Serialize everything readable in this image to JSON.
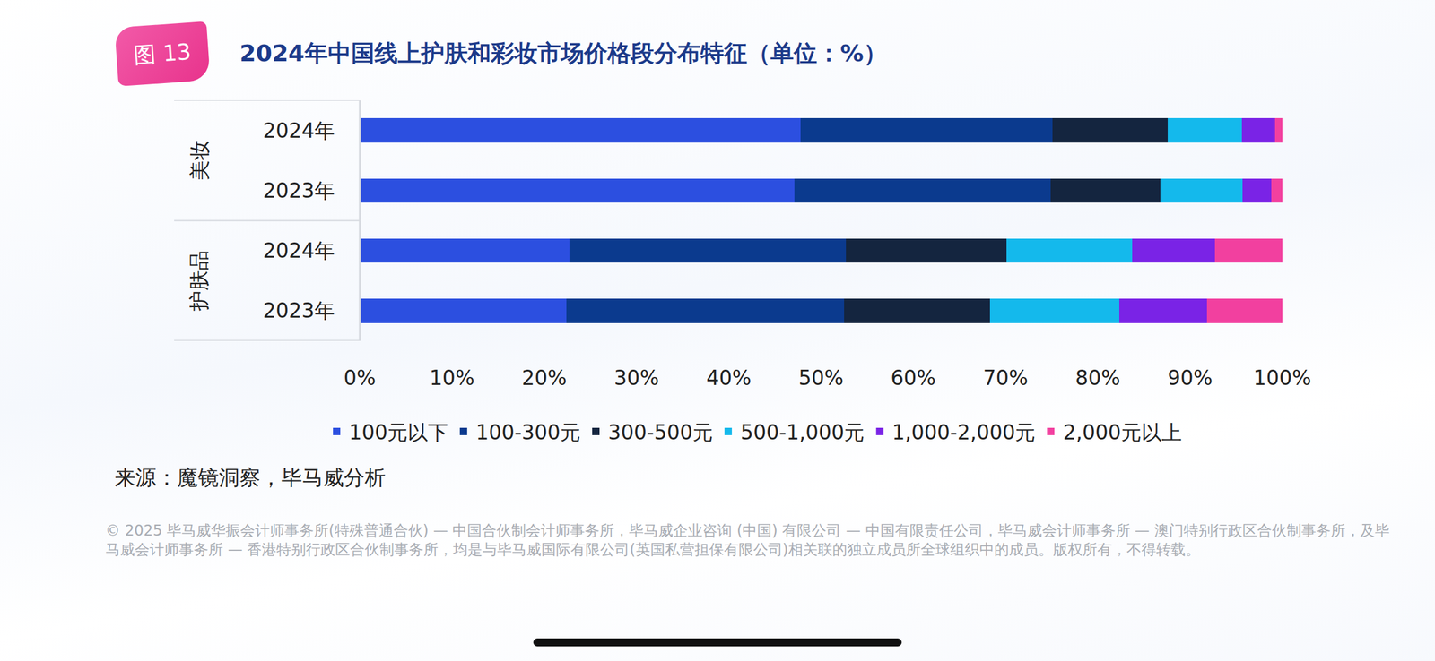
{
  "badge": "图 13",
  "chart_data": {
    "type": "bar",
    "title": "2024年中国线上护肤和彩妆市场价格段分布特征（单位：%）",
    "orientation": "horizontal",
    "stacked": true,
    "categories": [
      "2024年",
      "2023年",
      "2024年",
      "2023年"
    ],
    "groups": [
      "美妆",
      "美妆",
      "护肤品",
      "护肤品"
    ],
    "series": [
      {
        "name": "100元以下",
        "color": "#2c4fe0",
        "values": [
          47.8,
          47.1,
          22.7,
          22.4
        ]
      },
      {
        "name": "100-300元",
        "color": "#0b3a8e",
        "values": [
          27.3,
          27.8,
          30.0,
          30.1
        ]
      },
      {
        "name": "300-500元",
        "color": "#14253f",
        "values": [
          12.5,
          11.9,
          17.4,
          15.8
        ]
      },
      {
        "name": "500-1,000元",
        "color": "#14b9ec",
        "values": [
          8.0,
          8.9,
          13.6,
          14.0
        ]
      },
      {
        "name": "1,000-2,000元",
        "color": "#7a23e6",
        "values": [
          3.6,
          3.1,
          9.0,
          9.5
        ]
      },
      {
        "name": "2,000元以上",
        "color": "#f2409f",
        "values": [
          0.8,
          1.2,
          7.3,
          8.2
        ]
      }
    ],
    "xlim": [
      0,
      100
    ],
    "xticks": [
      {
        "value": 0,
        "label": "0%"
      },
      {
        "value": 10,
        "label": "10%"
      },
      {
        "value": 20,
        "label": "20%"
      },
      {
        "value": 30,
        "label": "30%"
      },
      {
        "value": 40,
        "label": "40%"
      },
      {
        "value": 50,
        "label": "50%"
      },
      {
        "value": 60,
        "label": "60%"
      },
      {
        "value": 70,
        "label": "70%"
      },
      {
        "value": 80,
        "label": "80%"
      },
      {
        "value": 90,
        "label": "90%"
      },
      {
        "value": 100,
        "label": "100%"
      }
    ],
    "grid": false,
    "legend": "bottom"
  },
  "source": "来源：魔镜洞察，毕马威分析",
  "footer": "© 2025 毕马威华振会计师事务所(特殊普通合伙) — 中国合伙制会计师事务所，毕马威企业咨询 (中国) 有限公司 — 中国有限责任公司，毕马威会计师事务所 — 澳门特别行政区合伙制事务所，及毕马威会计师事务所 — 香港特别行政区合伙制事务所，均是与毕马威国际有限公司(英国私营担保有限公司)相关联的独立成员所全球组织中的成员。版权所有，不得转载。"
}
